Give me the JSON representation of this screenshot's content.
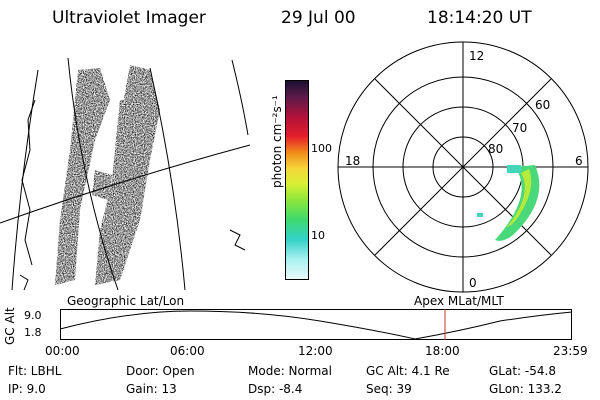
{
  "header": {
    "title": "Ultraviolet Imager",
    "date": "29 Jul 00",
    "time": "18:14:20 UT"
  },
  "colorbar": {
    "title": "photon cm⁻²s⁻¹",
    "tick_labels": [
      "100",
      "10"
    ]
  },
  "polar_plot": {
    "mlt_labels": [
      "12",
      "18",
      "6",
      "0"
    ],
    "lat_labels": [
      "60",
      "70",
      "80"
    ]
  },
  "timeline": {
    "left_panel_label": "Geographic Lat/Lon",
    "right_panel_label": "Apex MLat/MLT",
    "axis_label": "GC Alt",
    "y_ticks": [
      "9.0",
      "1.8"
    ],
    "x_ticks": [
      "00:00",
      "06:00",
      "12:00",
      "18:00",
      "23:59"
    ],
    "marker_color": "#c0392b"
  },
  "footer": {
    "flt": "Flt:  LBHL",
    "ip": "IP:  9.0",
    "door": "Door:  Open",
    "gain": "Gain:  13",
    "mode": "Mode:  Normal",
    "dsp": "Dsp:     -8.4",
    "gc_alt": "GC Alt:  4.1 Re",
    "seq": "Seq:  39",
    "glat": "GLat:   -54.8",
    "glon": "GLon:  133.2"
  }
}
